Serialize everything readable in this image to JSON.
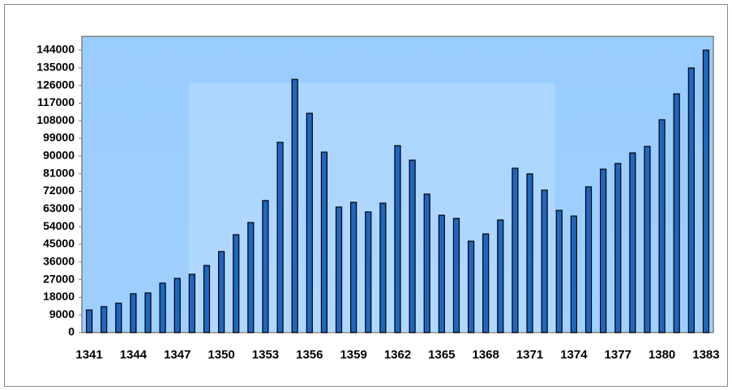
{
  "chart_data": {
    "type": "bar",
    "categories": [
      "1341",
      null,
      null,
      "1344",
      null,
      null,
      "1347",
      null,
      null,
      "1350",
      null,
      null,
      "1353",
      null,
      null,
      "1356",
      null,
      null,
      "1359",
      null,
      null,
      "1362",
      null,
      null,
      "1365",
      null,
      null,
      "1368",
      null,
      null,
      "1371",
      null,
      null,
      "1374",
      null,
      null,
      "1377",
      null,
      null,
      "1380",
      null,
      null,
      "1383"
    ],
    "values": [
      11500,
      13200,
      15000,
      19800,
      20200,
      25200,
      27600,
      29700,
      34200,
      41300,
      49900,
      56100,
      67300,
      97000,
      129100,
      111800,
      92000,
      64000,
      66400,
      61500,
      66000,
      95300,
      87900,
      70600,
      59800,
      58200,
      46600,
      50300,
      57400,
      83800,
      80900,
      72600,
      62300,
      59400,
      74300,
      83300,
      86200,
      91600,
      94900,
      108500,
      121700,
      134900,
      144000
    ],
    "color": "#1f66c1",
    "ylim": [
      0,
      151000
    ],
    "yticks": [
      0,
      9000,
      18000,
      27000,
      36000,
      45000,
      54000,
      63000,
      72000,
      81000,
      90000,
      99000,
      108000,
      117000,
      126000,
      135000,
      144000
    ],
    "grid": false
  }
}
